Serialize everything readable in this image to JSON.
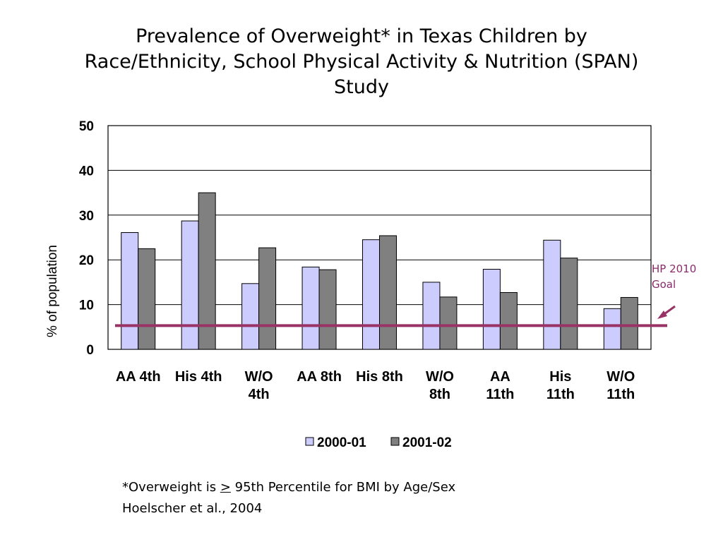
{
  "title_lines": [
    "Prevalence of Overweight* in Texas Children by",
    "Race/Ethnicity, School Physical Activity & Nutrition (SPAN)",
    "Study"
  ],
  "goal_label": {
    "line1": "HP 2010",
    "line2": "Goal"
  },
  "footnote": {
    "line1_prefix": "*Overweight is ",
    "line1_symbol": ">",
    "line1_suffix": " 95th Percentile for BMI by Age/Sex",
    "line2": "Hoelscher et al., 2004"
  },
  "colors": {
    "series_2000": "#ccccff",
    "series_2001": "#808080",
    "goal_line": "#993366",
    "gridline": "#000000"
  },
  "chart_data": {
    "type": "bar",
    "title": "Prevalence of Overweight* in Texas Children by Race/Ethnicity, School Physical Activity & Nutrition (SPAN) Study",
    "ylabel": "% of population",
    "xlabel": "",
    "ylim": [
      0,
      50
    ],
    "yticks": [
      "0",
      "10",
      "20",
      "30",
      "40",
      "50"
    ],
    "grid": true,
    "legend_position": "bottom",
    "categories": [
      [
        "AA 4th"
      ],
      [
        "His 4th"
      ],
      [
        "W/O",
        "4th"
      ],
      [
        "AA 8th"
      ],
      [
        "His 8th"
      ],
      [
        "W/O",
        "8th"
      ],
      [
        "AA",
        "11th"
      ],
      [
        "His",
        "11th"
      ],
      [
        "W/O",
        "11th"
      ]
    ],
    "series": [
      {
        "name": "2000-01",
        "values": [
          26.1,
          28.7,
          14.7,
          18.4,
          24.5,
          15.0,
          17.9,
          24.4,
          9.1
        ]
      },
      {
        "name": "2001-02",
        "values": [
          22.5,
          35.0,
          22.7,
          17.8,
          25.4,
          11.7,
          12.7,
          20.4,
          11.6
        ]
      }
    ],
    "reference_line": {
      "value": 5.3
    }
  }
}
